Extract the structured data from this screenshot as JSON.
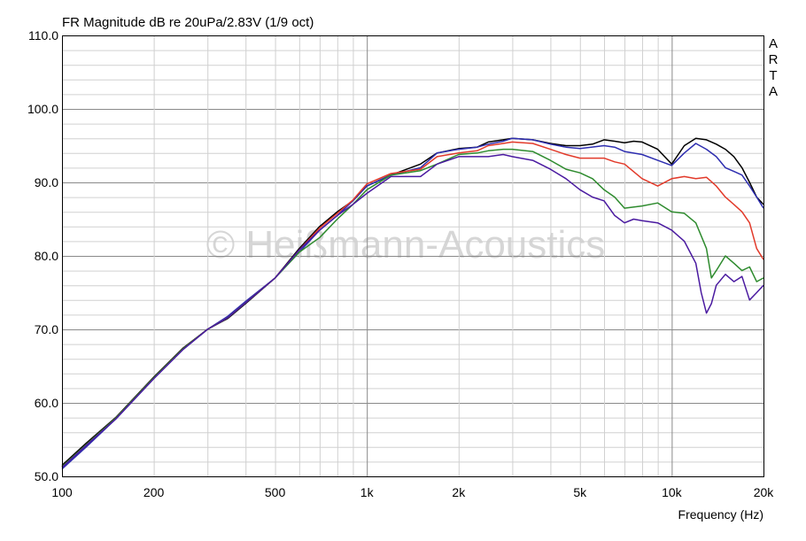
{
  "chart_data": {
    "type": "line",
    "title": "FR Magnitude dB re 20uPa/2.83V (1/9 oct)",
    "xlabel": "Frequency (Hz)",
    "ylabel": "",
    "xscale": "log",
    "xlim": [
      100,
      20000
    ],
    "ylim": [
      50,
      110
    ],
    "grid": true,
    "logo": [
      "A",
      "R",
      "T",
      "A"
    ],
    "watermark": "© Heißmann-Acoustics",
    "y_ticks": [
      {
        "value": 50,
        "label": "50.0"
      },
      {
        "value": 60,
        "label": "60.0"
      },
      {
        "value": 70,
        "label": "70.0"
      },
      {
        "value": 80,
        "label": "80.0"
      },
      {
        "value": 90,
        "label": "90.0"
      },
      {
        "value": 100,
        "label": "100.0"
      },
      {
        "value": 110,
        "label": "110.0"
      }
    ],
    "x_ticks": [
      {
        "value": 100,
        "label": "100"
      },
      {
        "value": 200,
        "label": "200"
      },
      {
        "value": 500,
        "label": "500"
      },
      {
        "value": 1000,
        "label": "1k"
      },
      {
        "value": 2000,
        "label": "2k"
      },
      {
        "value": 5000,
        "label": "5k"
      },
      {
        "value": 10000,
        "label": "10k"
      },
      {
        "value": 20000,
        "label": "20k"
      }
    ],
    "series": [
      {
        "color": "#000000",
        "points": [
          [
            100,
            51.5
          ],
          [
            120,
            54.5
          ],
          [
            150,
            58
          ],
          [
            200,
            63.5
          ],
          [
            250,
            67.5
          ],
          [
            300,
            70
          ],
          [
            350,
            71.5
          ],
          [
            400,
            73.5
          ],
          [
            500,
            77
          ],
          [
            600,
            81
          ],
          [
            700,
            84
          ],
          [
            800,
            86
          ],
          [
            900,
            87.5
          ],
          [
            1000,
            89.5
          ],
          [
            1200,
            91
          ],
          [
            1500,
            92.5
          ],
          [
            1700,
            94
          ],
          [
            2000,
            94.6
          ],
          [
            2300,
            94.8
          ],
          [
            2500,
            95.5
          ],
          [
            2800,
            95.8
          ],
          [
            3000,
            96
          ],
          [
            3500,
            95.8
          ],
          [
            4000,
            95.3
          ],
          [
            4500,
            95
          ],
          [
            5000,
            95
          ],
          [
            5500,
            95.2
          ],
          [
            6000,
            95.8
          ],
          [
            6500,
            95.6
          ],
          [
            7000,
            95.4
          ],
          [
            7500,
            95.6
          ],
          [
            8000,
            95.5
          ],
          [
            9000,
            94.5
          ],
          [
            10000,
            92.5
          ],
          [
            11000,
            95
          ],
          [
            12000,
            96
          ],
          [
            13000,
            95.8
          ],
          [
            14000,
            95.2
          ],
          [
            15000,
            94.5
          ],
          [
            16000,
            93.5
          ],
          [
            17000,
            92
          ],
          [
            18000,
            90
          ],
          [
            19000,
            88
          ],
          [
            20000,
            87
          ]
        ]
      },
      {
        "color": "#2e2eb0",
        "points": [
          [
            100,
            51
          ],
          [
            120,
            54
          ],
          [
            150,
            57.8
          ],
          [
            200,
            63.3
          ],
          [
            250,
            67.3
          ],
          [
            300,
            70
          ],
          [
            350,
            71.8
          ],
          [
            400,
            73.8
          ],
          [
            500,
            77
          ],
          [
            600,
            80.5
          ],
          [
            700,
            83.5
          ],
          [
            800,
            85.5
          ],
          [
            900,
            87.5
          ],
          [
            1000,
            89.5
          ],
          [
            1200,
            91
          ],
          [
            1500,
            92
          ],
          [
            1700,
            94
          ],
          [
            2000,
            94.5
          ],
          [
            2300,
            94.8
          ],
          [
            2500,
            95.2
          ],
          [
            2800,
            95.6
          ],
          [
            3000,
            96
          ],
          [
            3500,
            95.8
          ],
          [
            4000,
            95.2
          ],
          [
            4500,
            94.8
          ],
          [
            5000,
            94.6
          ],
          [
            6000,
            95
          ],
          [
            6500,
            94.8
          ],
          [
            7000,
            94.2
          ],
          [
            8000,
            93.8
          ],
          [
            9000,
            93
          ],
          [
            10000,
            92.3
          ],
          [
            11000,
            94
          ],
          [
            12000,
            95.3
          ],
          [
            13000,
            94.5
          ],
          [
            14000,
            93.5
          ],
          [
            15000,
            92
          ],
          [
            16000,
            91.5
          ],
          [
            17000,
            91
          ],
          [
            18000,
            89.5
          ],
          [
            19000,
            88
          ],
          [
            20000,
            86.5
          ]
        ]
      },
      {
        "color": "#e23a2a",
        "points": [
          [
            100,
            51.3
          ],
          [
            120,
            54.3
          ],
          [
            150,
            57.9
          ],
          [
            200,
            63.4
          ],
          [
            250,
            67.4
          ],
          [
            300,
            70
          ],
          [
            350,
            71.6
          ],
          [
            400,
            73.6
          ],
          [
            500,
            77
          ],
          [
            600,
            80.8
          ],
          [
            700,
            83.8
          ],
          [
            800,
            85.8
          ],
          [
            900,
            87.6
          ],
          [
            1000,
            89.8
          ],
          [
            1200,
            91.2
          ],
          [
            1500,
            91.8
          ],
          [
            1700,
            93.5
          ],
          [
            2000,
            94
          ],
          [
            2300,
            94.3
          ],
          [
            2500,
            95
          ],
          [
            2800,
            95.3
          ],
          [
            3000,
            95.5
          ],
          [
            3500,
            95.3
          ],
          [
            4000,
            94.5
          ],
          [
            4500,
            93.8
          ],
          [
            5000,
            93.3
          ],
          [
            6000,
            93.3
          ],
          [
            6500,
            92.8
          ],
          [
            7000,
            92.5
          ],
          [
            8000,
            90.5
          ],
          [
            9000,
            89.5
          ],
          [
            10000,
            90.5
          ],
          [
            11000,
            90.8
          ],
          [
            12000,
            90.5
          ],
          [
            13000,
            90.7
          ],
          [
            14000,
            89.5
          ],
          [
            15000,
            88
          ],
          [
            16000,
            87
          ],
          [
            17000,
            86
          ],
          [
            18000,
            84.5
          ],
          [
            19000,
            81
          ],
          [
            20000,
            79.5
          ]
        ]
      },
      {
        "color": "#2e8b2e",
        "points": [
          [
            100,
            51.3
          ],
          [
            120,
            54.3
          ],
          [
            150,
            57.9
          ],
          [
            200,
            63.4
          ],
          [
            250,
            67.4
          ],
          [
            300,
            70
          ],
          [
            350,
            71.6
          ],
          [
            400,
            73.6
          ],
          [
            500,
            77
          ],
          [
            600,
            80.5
          ],
          [
            700,
            82.5
          ],
          [
            800,
            85
          ],
          [
            900,
            87
          ],
          [
            1000,
            89
          ],
          [
            1200,
            91
          ],
          [
            1500,
            91.6
          ],
          [
            1700,
            92.5
          ],
          [
            2000,
            93.8
          ],
          [
            2300,
            94
          ],
          [
            2500,
            94.3
          ],
          [
            2800,
            94.5
          ],
          [
            3000,
            94.5
          ],
          [
            3500,
            94.2
          ],
          [
            4000,
            93
          ],
          [
            4500,
            91.8
          ],
          [
            5000,
            91.3
          ],
          [
            5500,
            90.5
          ],
          [
            6000,
            89
          ],
          [
            6500,
            88
          ],
          [
            7000,
            86.5
          ],
          [
            8000,
            86.8
          ],
          [
            9000,
            87.2
          ],
          [
            10000,
            86
          ],
          [
            11000,
            85.8
          ],
          [
            12000,
            84.5
          ],
          [
            13000,
            81
          ],
          [
            13500,
            77
          ],
          [
            14000,
            78
          ],
          [
            15000,
            80
          ],
          [
            16000,
            79
          ],
          [
            17000,
            78
          ],
          [
            18000,
            78.5
          ],
          [
            19000,
            76.5
          ],
          [
            20000,
            77
          ]
        ]
      },
      {
        "color": "#4a1aa0",
        "points": [
          [
            100,
            51.2
          ],
          [
            120,
            54.2
          ],
          [
            150,
            57.8
          ],
          [
            200,
            63.3
          ],
          [
            250,
            67.3
          ],
          [
            300,
            70
          ],
          [
            350,
            71.6
          ],
          [
            400,
            73.6
          ],
          [
            500,
            77
          ],
          [
            600,
            80.8
          ],
          [
            700,
            83.5
          ],
          [
            800,
            85.5
          ],
          [
            900,
            87
          ],
          [
            1000,
            88.5
          ],
          [
            1200,
            90.8
          ],
          [
            1500,
            90.8
          ],
          [
            1700,
            92.5
          ],
          [
            2000,
            93.5
          ],
          [
            2300,
            93.5
          ],
          [
            2500,
            93.5
          ],
          [
            2800,
            93.8
          ],
          [
            3000,
            93.5
          ],
          [
            3500,
            93
          ],
          [
            4000,
            91.8
          ],
          [
            4500,
            90.5
          ],
          [
            5000,
            89
          ],
          [
            5500,
            88
          ],
          [
            6000,
            87.5
          ],
          [
            6500,
            85.5
          ],
          [
            7000,
            84.5
          ],
          [
            7500,
            85
          ],
          [
            8000,
            84.8
          ],
          [
            9000,
            84.5
          ],
          [
            10000,
            83.5
          ],
          [
            11000,
            82
          ],
          [
            12000,
            79
          ],
          [
            12500,
            75
          ],
          [
            13000,
            72.2
          ],
          [
            13500,
            73.5
          ],
          [
            14000,
            76
          ],
          [
            15000,
            77.5
          ],
          [
            16000,
            76.5
          ],
          [
            17000,
            77.2
          ],
          [
            18000,
            74
          ],
          [
            19000,
            75
          ],
          [
            20000,
            76
          ]
        ]
      }
    ]
  }
}
